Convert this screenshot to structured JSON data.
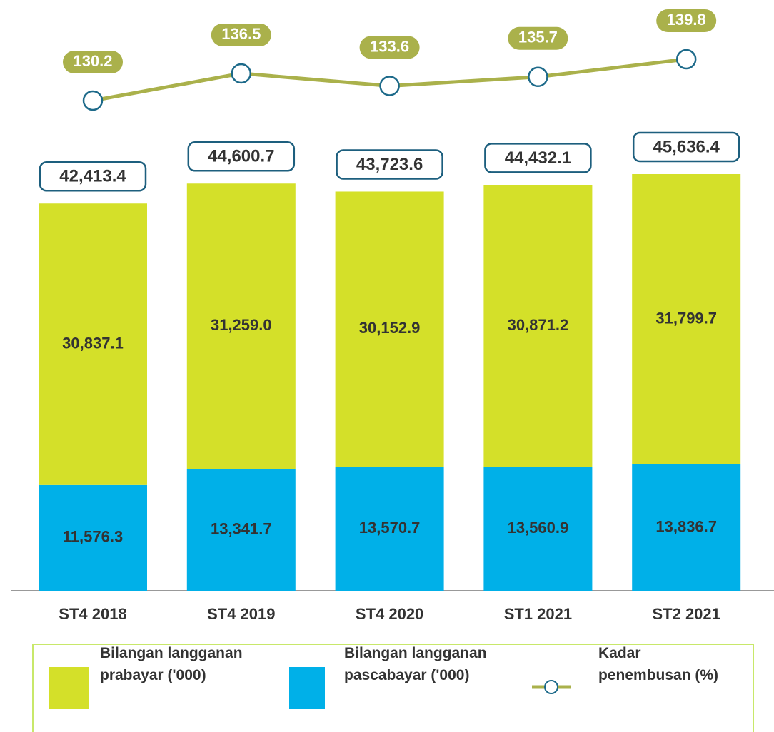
{
  "chart_data": {
    "type": "bar",
    "categories": [
      "ST4 2018",
      "ST4 2019",
      "ST4 2020",
      "ST1 2021",
      "ST2 2021"
    ],
    "series": [
      {
        "name": "Bilangan langganan prabayar ('000)",
        "color": "#d4e029",
        "type": "bar",
        "values": [
          30837.1,
          31259.0,
          30152.9,
          30871.2,
          31799.7
        ],
        "value_labels": [
          "30,837.1",
          "31,259.0",
          "30,152.9",
          "30,871.2",
          "31,799.7"
        ]
      },
      {
        "name": "Bilangan langganan pascabayar ('000)",
        "color": "#00b0e8",
        "type": "bar",
        "values": [
          11576.3,
          13341.7,
          13570.7,
          13560.9,
          13836.7
        ],
        "value_labels": [
          "11,576.3",
          "13,341.7",
          "13,570.7",
          "13,560.9",
          "13,836.7"
        ]
      },
      {
        "name": "Kadar penembusan (%)",
        "color": "#aab14b",
        "type": "line",
        "values": [
          130.2,
          136.5,
          133.6,
          135.7,
          139.8
        ]
      }
    ],
    "totals": [
      42413.4,
      44600.7,
      43723.6,
      44432.1,
      45636.4
    ],
    "total_labels": [
      "42,413.4",
      "44,600.7",
      "43,723.6",
      "44,432.1",
      "45,636.4"
    ],
    "legend": "bottom"
  }
}
